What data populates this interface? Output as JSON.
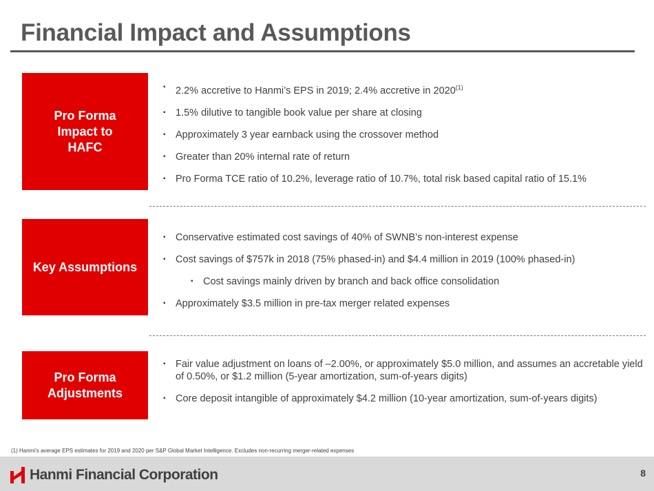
{
  "title": "Financial Impact and Assumptions",
  "sections": [
    {
      "label": "Pro Forma Impact to HAFC",
      "bullets": [
        {
          "text": "2.2% accretive to Hanmi’s EPS in 2019; 2.4% accretive in 2020",
          "sup": "(1)"
        },
        {
          "text": "1.5% dilutive to tangible book value per share at closing"
        },
        {
          "text": "Approximately 3 year earnback using the crossover method"
        },
        {
          "text": "Greater than 20% internal rate of return"
        },
        {
          "text": "Pro Forma TCE ratio of 10.2%, leverage ratio of 10.7%, total risk based capital ratio of 15.1%"
        }
      ]
    },
    {
      "label": "Key Assumptions",
      "bullets": [
        {
          "text": "Conservative estimated cost savings of 40% of SWNB’s non-interest expense"
        },
        {
          "text": "Cost savings of $757k in 2018 (75% phased-in) and $4.4 million in 2019 (100% phased-in)"
        },
        {
          "text": "Cost savings mainly driven by branch and back office consolidation"
        },
        {
          "text": "Approximately $3.5 million in pre-tax merger related expenses"
        }
      ]
    },
    {
      "label": "Pro Forma Adjustments",
      "bullets": [
        {
          "text": "Fair value adjustment on loans of –2.00%, or approximately $5.0 million, and assumes an accretable yield of 0.50%, or $1.2 million (5-year amortization, sum-of-years digits)"
        },
        {
          "text": "Core deposit intangible of approximately $4.2 million (10-year amortization, sum-of-years digits)"
        }
      ]
    }
  ],
  "footnote": "(1)   Hanmi’s average EPS estimates for 2019 and 2020 per S&P Global Market Intelligence. Excludes non-recurring merger-related expenses",
  "footer": {
    "logo_text": "Hanmi Financial Corporation",
    "page_number": "8"
  },
  "colors": {
    "accent": "#e00000",
    "title": "#595959",
    "footer_bg": "#d9d9d9"
  }
}
